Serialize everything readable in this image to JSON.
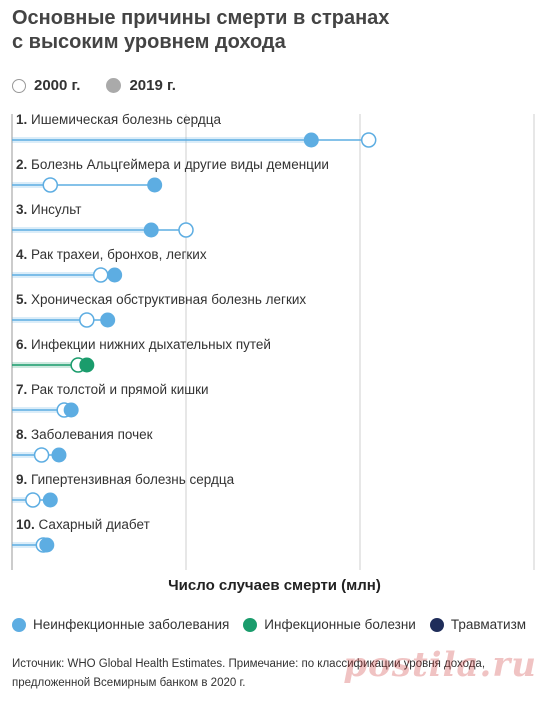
{
  "title": {
    "line1": "Основные причины смерти в странах",
    "line2": "с высоким уровнем дохода"
  },
  "legend_years": [
    {
      "label": "2000 г.",
      "style": "open"
    },
    {
      "label": "2019 г.",
      "style": "filled"
    }
  ],
  "chart_data": {
    "type": "dumbbell",
    "xlabel": "Число случаев смерти (млн)",
    "xlim": [
      0,
      3
    ],
    "xticks": [
      "0",
      "1",
      "2",
      "3"
    ],
    "series_names": [
      "2000 г.",
      "2019 г."
    ],
    "categories": [
      {
        "num": "1.",
        "label": "Ишемическая болезнь сердца",
        "v2000": 2.05,
        "v2019": 1.72,
        "group": "noncommunicable"
      },
      {
        "num": "2.",
        "label": "Болезнь Альцгеймера и другие виды деменции",
        "v2000": 0.22,
        "v2019": 0.82,
        "group": "noncommunicable"
      },
      {
        "num": "3.",
        "label": "Инсульт",
        "v2000": 1.0,
        "v2019": 0.8,
        "group": "noncommunicable"
      },
      {
        "num": "4.",
        "label": "Рак трахеи, бронхов, легких",
        "v2000": 0.51,
        "v2019": 0.59,
        "group": "noncommunicable"
      },
      {
        "num": "5.",
        "label": "Хроническая обструктивная болезнь легких",
        "v2000": 0.43,
        "v2019": 0.55,
        "group": "noncommunicable"
      },
      {
        "num": "6.",
        "label": "Инфекции нижних дыхательных путей",
        "v2000": 0.38,
        "v2019": 0.43,
        "group": "communicable"
      },
      {
        "num": "7.",
        "label": "Рак толстой и прямой кишки",
        "v2000": 0.3,
        "v2019": 0.34,
        "group": "noncommunicable"
      },
      {
        "num": "8.",
        "label": "Заболевания почек",
        "v2000": 0.17,
        "v2019": 0.27,
        "group": "noncommunicable"
      },
      {
        "num": "9.",
        "label": "Гипертензивная болезнь сердца",
        "v2000": 0.12,
        "v2019": 0.22,
        "group": "noncommunicable"
      },
      {
        "num": "10.",
        "label": "Сахарный диабет",
        "v2000": 0.18,
        "v2019": 0.2,
        "group": "noncommunicable"
      }
    ],
    "groups": [
      {
        "key": "noncommunicable",
        "label": "Неинфекционные заболевания",
        "color": "#5dade2"
      },
      {
        "key": "communicable",
        "label": "Инфекционные болезни",
        "color": "#1a9c6c"
      },
      {
        "key": "injuries",
        "label": "Травматизм",
        "color": "#1f2d5a"
      }
    ]
  },
  "source_line1": "Источник: WHO Global Health Estimates. Примечание: по классификации уровня дохода,",
  "source_line2": "предложенной Всемирным банком в 2020 г.",
  "watermark": "postila.ru"
}
